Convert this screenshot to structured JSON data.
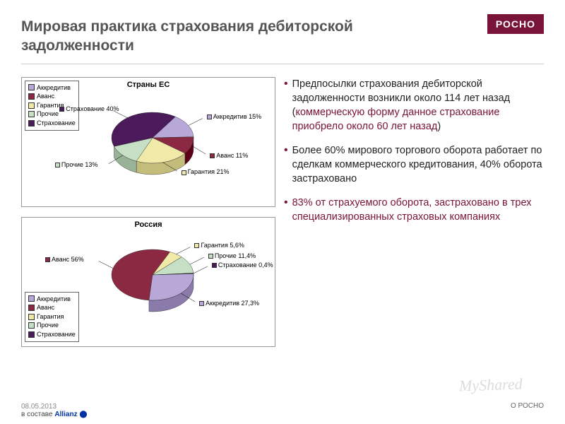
{
  "logo": "РОСНО",
  "title": "Мировая практика страхования дебиторской задолженности",
  "legend_items": [
    {
      "label": "Аккредитив",
      "color": "#b8a8d8"
    },
    {
      "label": "Аванс",
      "color": "#8b2942"
    },
    {
      "label": "Гарантия",
      "color": "#f0e9a8"
    },
    {
      "label": "Прочие",
      "color": "#c5e0c5"
    },
    {
      "label": "Страхование",
      "color": "#4a1a5a"
    }
  ],
  "chart1": {
    "title": "Страны ЕС",
    "type": "pie",
    "slices": [
      {
        "name": "Страхование",
        "value": 40,
        "color": "#4a1a5a",
        "label": "Страхование 40%"
      },
      {
        "name": "Аккредитив",
        "value": 15,
        "color": "#b8a8d8",
        "label": "Аккредитив 15%"
      },
      {
        "name": "Аванс",
        "value": 11,
        "color": "#8b2942",
        "label": "Аванс 11%"
      },
      {
        "name": "Гарантия",
        "value": 21,
        "color": "#f0e9a8",
        "label": "Гарантия 21%"
      },
      {
        "name": "Прочие",
        "value": 13,
        "color": "#c5e0c5",
        "label": "Прочие 13%"
      }
    ],
    "start_angle": 160,
    "label_fontsize": 9,
    "title_fontsize": 11,
    "border_color": "#333333",
    "background": "#ffffff"
  },
  "chart2": {
    "title": "Россия",
    "type": "pie",
    "slices": [
      {
        "name": "Аванс",
        "value": 56,
        "color": "#8b2942",
        "label": "Аванс 56%"
      },
      {
        "name": "Гарантия",
        "value": 5.6,
        "color": "#f0e9a8",
        "label": "Гарантия 5,6%"
      },
      {
        "name": "Прочие",
        "value": 11.4,
        "color": "#c5e0c5",
        "label": "Прочие 11,4%"
      },
      {
        "name": "Страхование",
        "value": 0.4,
        "color": "#4a1a5a",
        "label": "Страхование 0,4%"
      },
      {
        "name": "Аккредитив",
        "value": 27.3,
        "color": "#b8a8d8",
        "label": "Аккредитив 27,3%"
      }
    ],
    "start_angle": 95,
    "label_fontsize": 9,
    "title_fontsize": 11,
    "border_color": "#333333",
    "background": "#ffffff"
  },
  "bullets": [
    {
      "pre": "Предпосылки страхования дебиторской задолженности возникли около 114 лет назад (",
      "hl": "коммерческую форму данное страхование приобрело около 60 лет назад",
      "post": ")"
    },
    {
      "pre": "Более 60% мирового торгового оборота работает по сделкам коммерческого кредитования, 40% оборота застраховано",
      "hl": "",
      "post": ""
    },
    {
      "pre": "",
      "hl": "83% от страхуемого оборота, застраховано в трех специализированных страховых компаниях",
      "post": ""
    }
  ],
  "footer": {
    "date": "08.05.2013",
    "brand_prefix": "в составе ",
    "brand": "Allianz",
    "right": "О РОСНО"
  },
  "watermark": "MyShared",
  "colors": {
    "accent": "#7a1338",
    "title": "#555555",
    "text": "#222222"
  }
}
